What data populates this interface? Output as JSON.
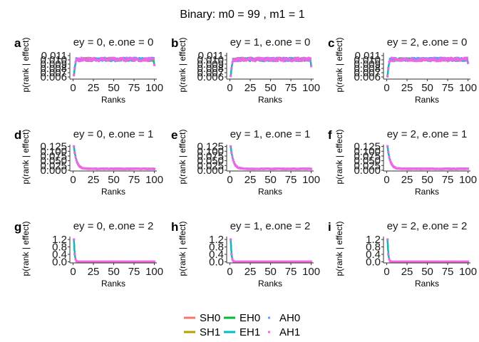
{
  "title": "Binary: m0 =  99 , m1 =  1",
  "colors": {
    "SH0": "#F8766D",
    "SH1": "#B79F00",
    "EH0": "#00BA38",
    "EH1": "#00BFC4",
    "AH0": "#619CFF",
    "AH1": "#F564E3"
  },
  "legend": {
    "items": [
      {
        "key": "SH0",
        "label": "SH0",
        "glyph": "line"
      },
      {
        "key": "SH1",
        "label": "SH1",
        "glyph": "line"
      },
      {
        "key": "EH0",
        "label": "EH0",
        "glyph": "line"
      },
      {
        "key": "EH1",
        "label": "EH1",
        "glyph": "line"
      },
      {
        "key": "AH0",
        "label": "AH0",
        "glyph": "point"
      },
      {
        "key": "AH1",
        "label": "AH1",
        "glyph": "point"
      }
    ]
  },
  "chart_data": [
    {
      "letter": "a",
      "title": "ey = 0, e.one = 0",
      "type": "line",
      "xlabel": "Ranks",
      "ylabel": "p(rank | effect)",
      "xlim": [
        -4,
        103
      ],
      "ylim": [
        0.0055,
        0.0115
      ],
      "xticks": [
        0,
        25,
        50,
        75,
        100
      ],
      "xtick_labels": [
        "0",
        "25",
        "50",
        "75",
        "100"
      ],
      "yticks": [
        0.006,
        0.007,
        0.008,
        0.009,
        0.01,
        0.011
      ],
      "ytick_labels": [
        "0.006",
        "0.007",
        "0.008",
        "0.009",
        "0.010",
        "0.011"
      ],
      "profile": "flat",
      "base": 0.0101,
      "start_value": 0.0063,
      "end_value": 0.0088
    },
    {
      "letter": "b",
      "title": "ey = 1, e.one = 0",
      "type": "line",
      "xlabel": "Ranks",
      "ylabel": "p(rank | effect)",
      "xlim": [
        -4,
        103
      ],
      "ylim": [
        0.0055,
        0.0115
      ],
      "xticks": [
        0,
        25,
        50,
        75,
        100
      ],
      "xtick_labels": [
        "0",
        "25",
        "50",
        "75",
        "100"
      ],
      "yticks": [
        0.006,
        0.007,
        0.008,
        0.009,
        0.01,
        0.011
      ],
      "ytick_labels": [
        "0.006",
        "0.007",
        "0.008",
        "0.009",
        "0.010",
        "0.011"
      ],
      "profile": "flat",
      "base": 0.0101,
      "start_value": 0.0062,
      "end_value": 0.0087
    },
    {
      "letter": "c",
      "title": "ey = 2, e.one = 0",
      "type": "line",
      "xlabel": "Ranks",
      "ylabel": "p(rank | effect)",
      "xlim": [
        -4,
        103
      ],
      "ylim": [
        0.0055,
        0.0115
      ],
      "xticks": [
        0,
        25,
        50,
        75,
        100
      ],
      "xtick_labels": [
        "0",
        "25",
        "50",
        "75",
        "100"
      ],
      "yticks": [
        0.006,
        0.007,
        0.008,
        0.009,
        0.01,
        0.011
      ],
      "ytick_labels": [
        "0.006",
        "0.007",
        "0.008",
        "0.009",
        "0.010",
        "0.011"
      ],
      "profile": "flat",
      "base": 0.0101,
      "start_value": 0.0062,
      "end_value": 0.0092
    },
    {
      "letter": "d",
      "title": "ey = 0, e.one = 1",
      "type": "line",
      "xlabel": "Ranks",
      "ylabel": "p(rank | effect)",
      "xlim": [
        -4,
        103
      ],
      "ylim": [
        -0.004,
        0.131
      ],
      "xticks": [
        0,
        25,
        50,
        75,
        100
      ],
      "xtick_labels": [
        "0",
        "25",
        "50",
        "75",
        "100"
      ],
      "yticks": [
        0,
        0.025,
        0.05,
        0.075,
        0.1,
        0.125
      ],
      "ytick_labels": [
        "0.000",
        "0.025",
        "0.050",
        "0.075",
        "0.100",
        "0.125"
      ],
      "profile": "decay",
      "base": 0.0075,
      "peak": 0.125,
      "decay": 3.2
    },
    {
      "letter": "e",
      "title": "ey = 1, e.one = 1",
      "type": "line",
      "xlabel": "Ranks",
      "ylabel": "p(rank | effect)",
      "xlim": [
        -4,
        103
      ],
      "ylim": [
        -0.004,
        0.131
      ],
      "xticks": [
        0,
        25,
        50,
        75,
        100
      ],
      "xtick_labels": [
        "0",
        "25",
        "50",
        "75",
        "100"
      ],
      "yticks": [
        0,
        0.025,
        0.05,
        0.075,
        0.1,
        0.125
      ],
      "ytick_labels": [
        "0.000",
        "0.025",
        "0.050",
        "0.075",
        "0.100",
        "0.125"
      ],
      "profile": "decay",
      "base": 0.0075,
      "peak": 0.125,
      "decay": 3.2
    },
    {
      "letter": "f",
      "title": "ey = 2, e.one = 1",
      "type": "line",
      "xlabel": "Ranks",
      "ylabel": "p(rank | effect)",
      "xlim": [
        -4,
        103
      ],
      "ylim": [
        -0.004,
        0.131
      ],
      "xticks": [
        0,
        25,
        50,
        75,
        100
      ],
      "xtick_labels": [
        "0",
        "25",
        "50",
        "75",
        "100"
      ],
      "yticks": [
        0,
        0.025,
        0.05,
        0.075,
        0.1,
        0.125
      ],
      "ytick_labels": [
        "0.000",
        "0.025",
        "0.050",
        "0.075",
        "0.100",
        "0.125"
      ],
      "profile": "decay",
      "base": 0.0075,
      "peak": 0.125,
      "decay": 3.2
    },
    {
      "letter": "g",
      "title": "ey = 0, e.one = 2",
      "type": "line",
      "xlabel": "Ranks",
      "ylabel": "p(rank | effect)",
      "xlim": [
        -4,
        103
      ],
      "ylim": [
        -0.06,
        1.32
      ],
      "xticks": [
        0,
        25,
        50,
        75,
        100
      ],
      "xtick_labels": [
        "0",
        "25",
        "50",
        "75",
        "100"
      ],
      "yticks": [
        0,
        0.4,
        0.8,
        1.2
      ],
      "ytick_labels": [
        "0.0",
        "0.4",
        "0.8",
        "1.2"
      ],
      "profile": "spike",
      "base": 0.006,
      "peak": 1.2,
      "decay": 0.9
    },
    {
      "letter": "h",
      "title": "ey = 1, e.one = 2",
      "type": "line",
      "xlabel": "Ranks",
      "ylabel": "p(rank | effect)",
      "xlim": [
        -4,
        103
      ],
      "ylim": [
        -0.06,
        1.32
      ],
      "xticks": [
        0,
        25,
        50,
        75,
        100
      ],
      "xtick_labels": [
        "0",
        "25",
        "50",
        "75",
        "100"
      ],
      "yticks": [
        0,
        0.4,
        0.8,
        1.2
      ],
      "ytick_labels": [
        "0.0",
        "0.4",
        "0.8",
        "1.2"
      ],
      "profile": "spike",
      "base": 0.006,
      "peak": 1.2,
      "decay": 0.9
    },
    {
      "letter": "i",
      "title": "ey = 2, e.one = 2",
      "type": "line",
      "xlabel": "Ranks",
      "ylabel": "p(rank | effect)",
      "xlim": [
        -4,
        103
      ],
      "ylim": [
        -0.06,
        1.32
      ],
      "xticks": [
        0,
        25,
        50,
        75,
        100
      ],
      "xtick_labels": [
        "0",
        "25",
        "50",
        "75",
        "100"
      ],
      "yticks": [
        0,
        0.4,
        0.8,
        1.2
      ],
      "ytick_labels": [
        "0.0",
        "0.4",
        "0.8",
        "1.2"
      ],
      "profile": "spike",
      "base": 0.006,
      "peak": 1.2,
      "decay": 0.9
    }
  ]
}
